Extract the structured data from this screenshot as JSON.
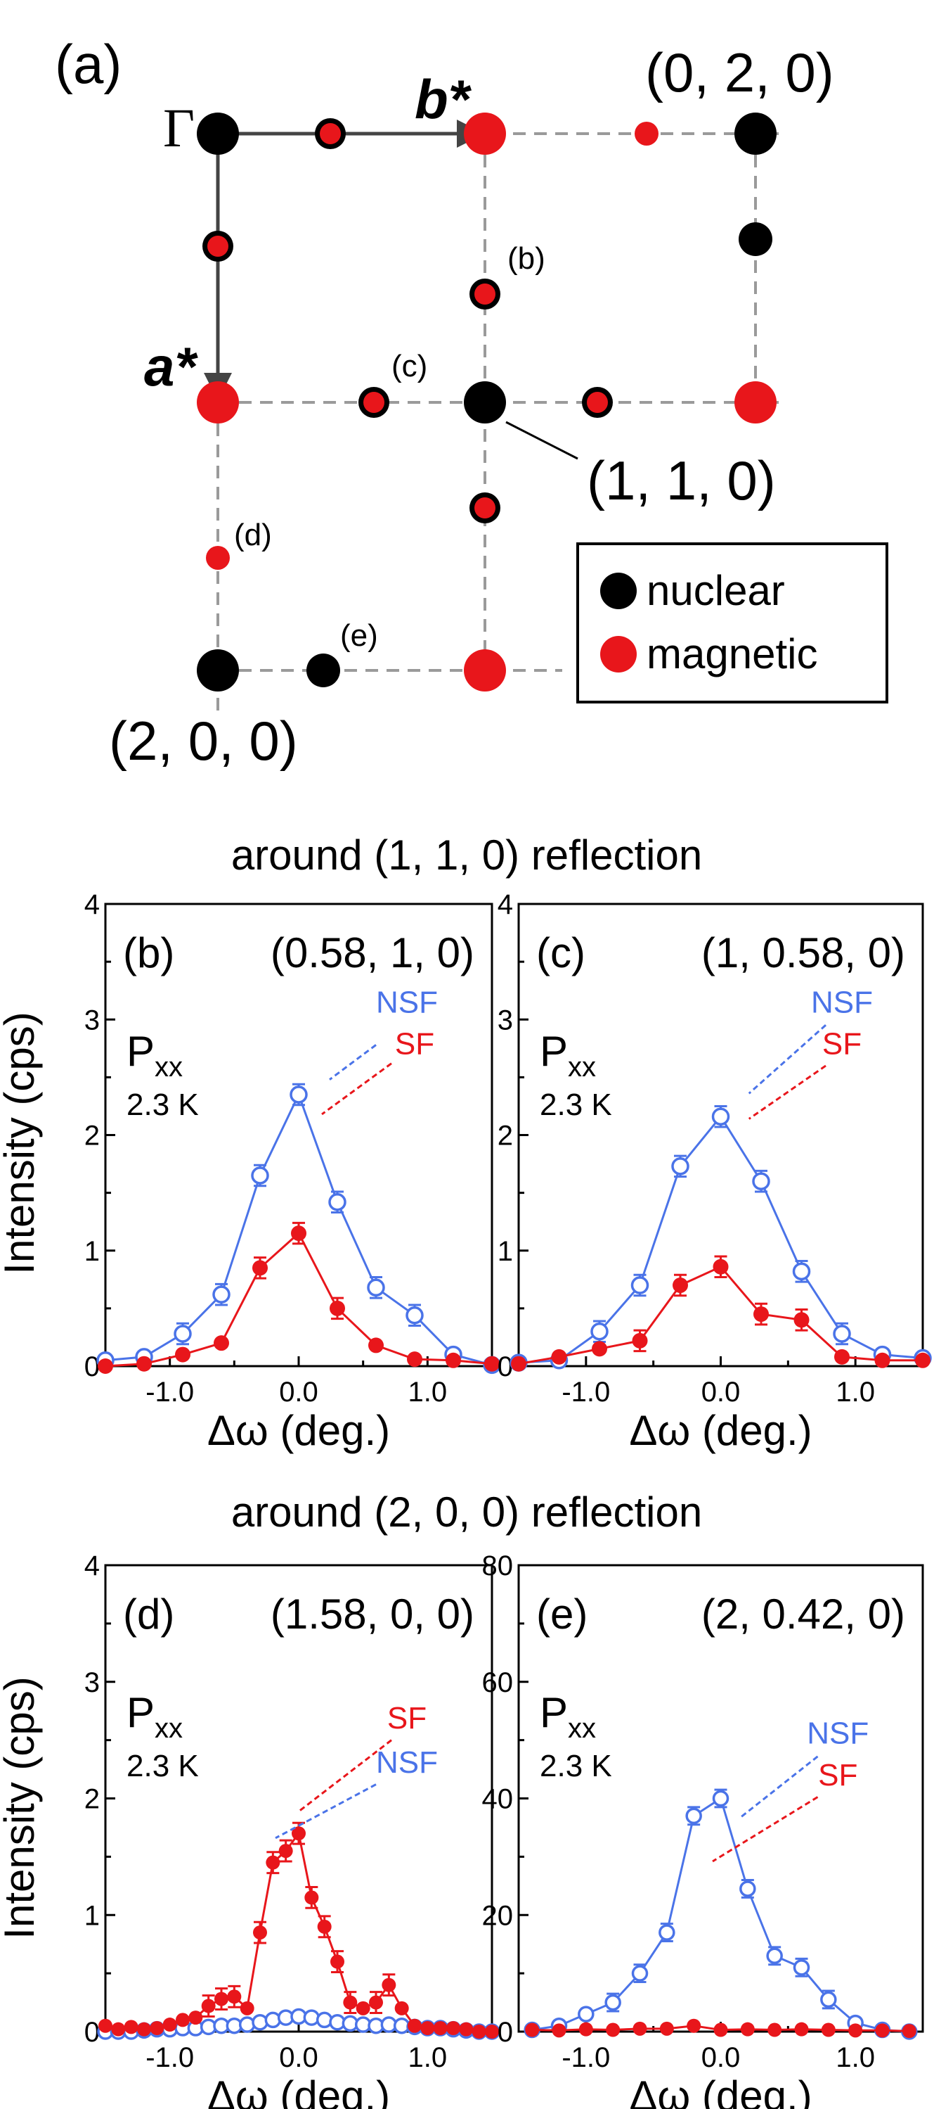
{
  "colors": {
    "nsf": "#4a73e8",
    "sf": "#e8161b",
    "nuclear": "#000000",
    "magnetic": "#e8161b",
    "guide": "#9a9a9a"
  },
  "diagram": {
    "panel_label": "(a)",
    "gamma": "Γ",
    "b_star": "b*",
    "a_star": "a*",
    "label_020": "(0, 2, 0)",
    "label_110": "(1, 1, 0)",
    "label_200": "(2, 0, 0)",
    "pt_b": "(b)",
    "pt_c": "(c)",
    "pt_d": "(d)",
    "pt_e": "(e)",
    "legend_nuclear": "nuclear",
    "legend_magnetic": "magnetic"
  },
  "group_titles": {
    "top": "around (1, 1, 0) reflection",
    "bottom": "around (2, 0, 0) reflection"
  },
  "common": {
    "ylabel": "Intensity (cps)",
    "xlabel": "Δω (deg.)",
    "pol_main": "P",
    "pol_sub": "xx",
    "temp": "2.3 K",
    "nsf": "NSF",
    "sf": "SF"
  },
  "chart_data": [
    {
      "type": "scatter",
      "panel": "(b)",
      "q": "(0.58, 1, 0)",
      "xlim": [
        -1.5,
        1.5
      ],
      "ylim": [
        0,
        4
      ],
      "xticks": [
        "-1.0",
        "0.0",
        "1.0"
      ],
      "yticks": [
        "0",
        "1",
        "2",
        "3",
        "4"
      ],
      "series": [
        {
          "name": "NSF",
          "x": [
            -1.5,
            -1.2,
            -0.9,
            -0.6,
            -0.3,
            0.0,
            0.3,
            0.6,
            0.9,
            1.2,
            1.5
          ],
          "y": [
            0.05,
            0.08,
            0.28,
            0.62,
            1.65,
            2.35,
            1.42,
            0.68,
            0.44,
            0.1,
            0.01
          ]
        },
        {
          "name": "SF",
          "x": [
            -1.5,
            -1.2,
            -0.9,
            -0.6,
            -0.3,
            0.0,
            0.3,
            0.6,
            0.9,
            1.2,
            1.5
          ],
          "y": [
            0.0,
            0.02,
            0.1,
            0.2,
            0.85,
            1.15,
            0.5,
            0.18,
            0.06,
            0.05,
            0.02
          ]
        }
      ]
    },
    {
      "type": "scatter",
      "panel": "(c)",
      "q": "(1, 0.58, 0)",
      "xlim": [
        -1.5,
        1.5
      ],
      "ylim": [
        0,
        4
      ],
      "xticks": [
        "-1.0",
        "0.0",
        "1.0"
      ],
      "yticks": [
        "0",
        "1",
        "2",
        "3",
        "4"
      ],
      "series": [
        {
          "name": "NSF",
          "x": [
            -1.5,
            -1.2,
            -0.9,
            -0.6,
            -0.3,
            0.0,
            0.3,
            0.6,
            0.9,
            1.2,
            1.5
          ],
          "y": [
            0.03,
            0.05,
            0.3,
            0.7,
            1.73,
            2.16,
            1.6,
            0.82,
            0.28,
            0.1,
            0.07
          ]
        },
        {
          "name": "SF",
          "x": [
            -1.5,
            -1.2,
            -0.9,
            -0.6,
            -0.3,
            0.0,
            0.3,
            0.6,
            0.9,
            1.2,
            1.5
          ],
          "y": [
            0.02,
            0.08,
            0.15,
            0.22,
            0.7,
            0.86,
            0.45,
            0.4,
            0.08,
            0.05,
            0.05
          ]
        }
      ]
    },
    {
      "type": "scatter",
      "panel": "(d)",
      "q": "(1.58, 0, 0)",
      "xlim": [
        -1.5,
        1.5
      ],
      "ylim": [
        0,
        4
      ],
      "xticks": [
        "-1.0",
        "0.0",
        "1.0"
      ],
      "yticks": [
        "0",
        "1",
        "2",
        "3",
        "4"
      ],
      "series": [
        {
          "name": "NSF",
          "x": [
            -1.5,
            -1.4,
            -1.3,
            -1.2,
            -1.1,
            -1.0,
            -0.9,
            -0.8,
            -0.7,
            -0.6,
            -0.5,
            -0.4,
            -0.3,
            -0.2,
            -0.1,
            0.0,
            0.1,
            0.2,
            0.3,
            0.4,
            0.5,
            0.6,
            0.7,
            0.8,
            0.9,
            1.0,
            1.1,
            1.2,
            1.3,
            1.4,
            1.5
          ],
          "y": [
            0.0,
            0.0,
            0.0,
            0.01,
            0.02,
            0.02,
            0.03,
            0.03,
            0.04,
            0.05,
            0.05,
            0.06,
            0.08,
            0.1,
            0.12,
            0.13,
            0.12,
            0.1,
            0.08,
            0.07,
            0.06,
            0.05,
            0.06,
            0.05,
            0.04,
            0.03,
            0.03,
            0.02,
            0.01,
            0.0,
            0.0
          ]
        },
        {
          "name": "SF",
          "x": [
            -1.5,
            -1.4,
            -1.3,
            -1.2,
            -1.1,
            -1.0,
            -0.9,
            -0.8,
            -0.7,
            -0.6,
            -0.5,
            -0.4,
            -0.3,
            -0.2,
            -0.1,
            0.0,
            0.1,
            0.2,
            0.3,
            0.4,
            0.5,
            0.6,
            0.7,
            0.8,
            0.9,
            1.0,
            1.1,
            1.2,
            1.3,
            1.4,
            1.5
          ],
          "y": [
            0.05,
            0.02,
            0.04,
            0.02,
            0.03,
            0.06,
            0.1,
            0.12,
            0.22,
            0.28,
            0.3,
            0.2,
            0.85,
            1.45,
            1.55,
            1.7,
            1.15,
            0.9,
            0.6,
            0.25,
            0.2,
            0.25,
            0.4,
            0.2,
            0.05,
            0.03,
            0.03,
            0.03,
            0.02,
            0.0,
            0.0
          ]
        }
      ]
    },
    {
      "type": "scatter",
      "panel": "(e)",
      "q": "(2, 0.42, 0)",
      "xlim": [
        -1.5,
        1.5
      ],
      "ylim": [
        0,
        80
      ],
      "xticks": [
        "-1.0",
        "0.0",
        "1.0"
      ],
      "yticks": [
        "0",
        "20",
        "40",
        "60",
        "80"
      ],
      "series": [
        {
          "name": "NSF",
          "x": [
            -1.4,
            -1.2,
            -1.0,
            -0.8,
            -0.6,
            -0.4,
            -0.2,
            0.0,
            0.2,
            0.4,
            0.6,
            0.8,
            1.0,
            1.2,
            1.4
          ],
          "y": [
            0.3,
            1.0,
            3.0,
            5.0,
            10.0,
            17.0,
            37.0,
            40.0,
            24.5,
            13.0,
            11.0,
            5.5,
            1.5,
            0.3,
            0.0
          ]
        },
        {
          "name": "SF",
          "x": [
            -1.4,
            -1.2,
            -1.0,
            -0.8,
            -0.6,
            -0.4,
            -0.2,
            0.0,
            0.2,
            0.4,
            0.6,
            0.8,
            1.0,
            1.2,
            1.4
          ],
          "y": [
            0.3,
            0.2,
            0.4,
            0.3,
            0.5,
            0.5,
            1.0,
            0.3,
            0.4,
            0.3,
            0.4,
            0.3,
            0.2,
            0.2,
            0.1
          ]
        }
      ]
    }
  ]
}
